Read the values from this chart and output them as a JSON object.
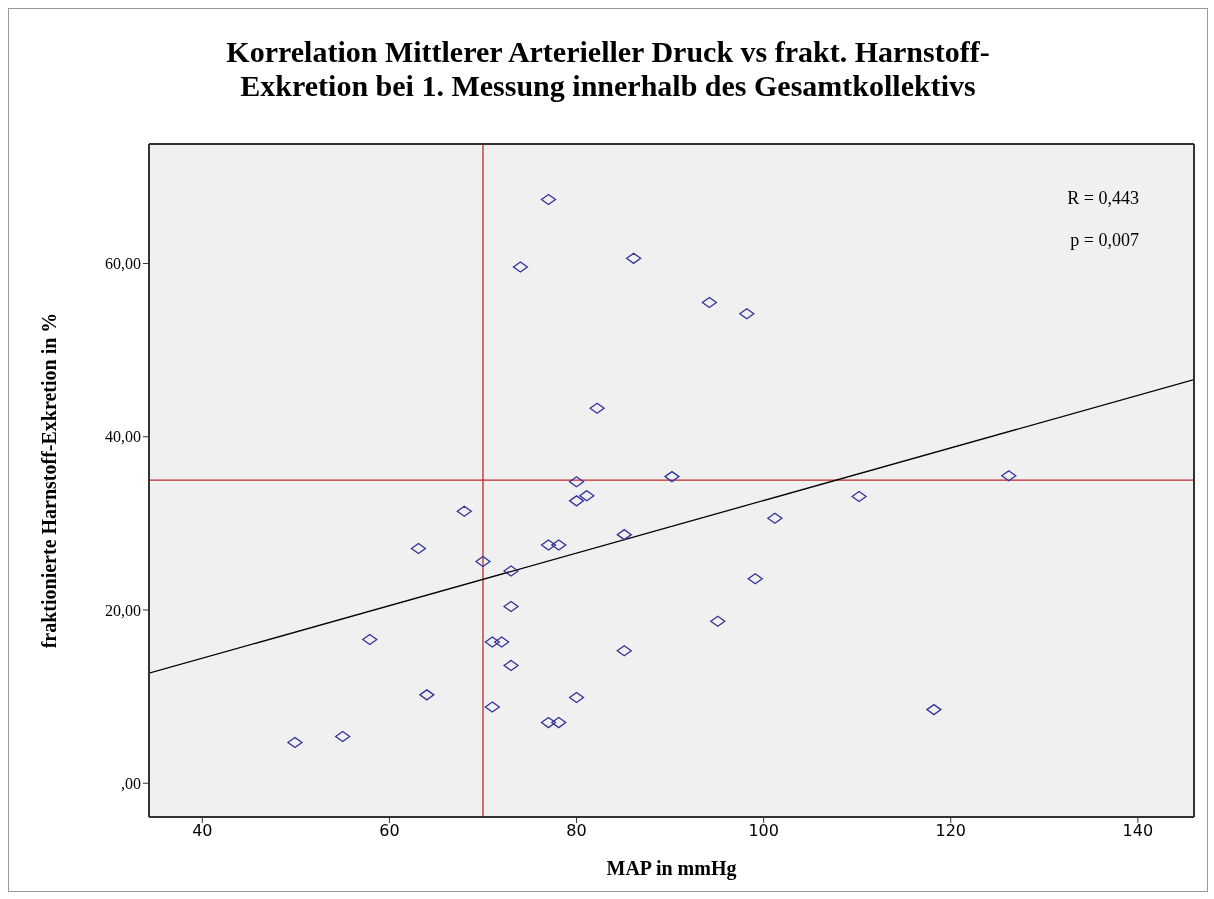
{
  "chart_data": {
    "type": "scatter",
    "title": "Korrelation Mittlerer Arterieller Druck vs frakt. Harnstoff-\nExkretion bei 1. Messung innerhalb des Gesamtkollektivs",
    "xlabel": "MAP in mmHg",
    "ylabel": "fraktionierte Harnstoff-Exkretion in %",
    "annotations": [
      "R = 0,443",
      "p = 0,007"
    ],
    "xlim": [
      34.3,
      146
    ],
    "xticks": [
      40,
      60,
      80,
      100,
      120,
      140
    ],
    "ylim": [
      -3.9,
      73.8
    ],
    "yticks": [
      {
        "value": 0,
        "label": ",00"
      },
      {
        "value": 20,
        "label": "20,00"
      },
      {
        "value": 40,
        "label": "40,00"
      },
      {
        "value": 60,
        "label": "60,00"
      }
    ],
    "grid": false,
    "marker": "diamond",
    "ref_lines": [
      {
        "axis": "x",
        "value": 70,
        "color": "#c0282d"
      },
      {
        "axis": "y",
        "value": 35,
        "color": "#c0282d"
      }
    ],
    "series": [
      {
        "color": "#333399",
        "x": [
          77.0,
          74.0,
          86.1,
          94.2,
          98.2,
          82.2,
          80.0,
          90.2,
          126.2,
          81.1,
          80.0,
          110.2,
          68.0,
          101.2,
          85.1,
          63.1,
          77.0,
          78.1,
          70.0,
          73.0,
          99.1,
          73.0,
          95.1,
          57.9,
          71.0,
          72.0,
          73.0,
          85.1,
          64.0,
          80.0,
          71.0,
          118.2,
          77.0,
          78.1,
          55.0,
          49.9
        ],
        "values": [
          67.4,
          59.6,
          60.6,
          55.5,
          54.2,
          43.3,
          34.8,
          35.4,
          35.5,
          33.2,
          32.6,
          33.1,
          31.4,
          30.6,
          28.7,
          27.1,
          27.5,
          27.5,
          25.6,
          24.5,
          23.6,
          20.4,
          18.7,
          16.6,
          16.3,
          16.3,
          13.6,
          15.3,
          10.2,
          9.9,
          8.8,
          8.5,
          7.0,
          7.0,
          5.4,
          4.7
        ]
      },
      {
        "type": "line",
        "color": "#000000",
        "x": [
          34.3,
          146
        ],
        "values": [
          12.7,
          46.6
        ],
        "marker": "none"
      }
    ]
  }
}
